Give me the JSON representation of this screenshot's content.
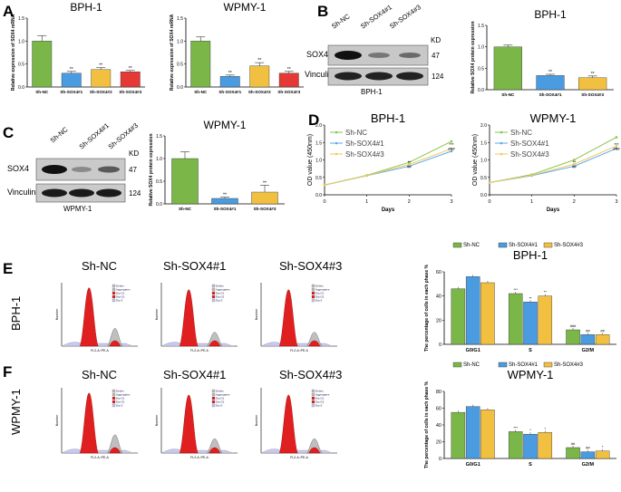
{
  "colors": {
    "green": "#7ab648",
    "blue": "#4a9be0",
    "yellow": "#f2c040",
    "red": "#e53935",
    "flowRed": "#e02020",
    "flowGray": "#bfbfbf",
    "flowLav": "#c8c8f0",
    "lineGreen": "#8bc34a",
    "lineBlue": "#5aa9e6",
    "lineYellow": "#f0c75e"
  },
  "panels": {
    "A": {
      "letter": "A"
    },
    "B": {
      "letter": "B"
    },
    "C": {
      "letter": "C"
    },
    "D": {
      "letter": "D"
    },
    "E": {
      "letter": "E"
    },
    "F": {
      "letter": "F"
    }
  },
  "blot_B": {
    "lanes": [
      "Sh-NC",
      "Sh-SOX4#1",
      "Sh-SOX4#3"
    ],
    "rows": [
      "SOX4",
      "Vinculin"
    ],
    "kd_label": "KD",
    "kd_values": [
      "47",
      "124"
    ],
    "cell_line": "BPH-1"
  },
  "blot_C": {
    "lanes": [
      "Sh-NC",
      "Sh-SOX4#1",
      "Sh-SOX4#3"
    ],
    "rows": [
      "SOX4",
      "Vinculin"
    ],
    "kd_label": "KD",
    "kd_values": [
      "47",
      "124"
    ],
    "cell_line": "WPMY-1"
  },
  "flow_E": {
    "row_label": "BPH-1",
    "titles": [
      "Sh-NC",
      "Sh-SOX4#1",
      "Sh-SOX4#3"
    ],
    "xlabel": "FL2-A::PE-A",
    "ylabel": "Number",
    "legend": [
      "Debris",
      "Aggregates",
      "Dip G1",
      "Dip G2",
      "Dip S"
    ]
  },
  "flow_F": {
    "row_label": "WPMY-1",
    "titles": [
      "Sh-NC",
      "Sh-SOX4#1",
      "Sh-SOX4#3"
    ],
    "xlabel": "FL2-A::PE-A",
    "ylabel": "Number",
    "legend": [
      "Debris",
      "Aggregates",
      "Dip G1",
      "Dip G2",
      "Dip S"
    ]
  },
  "chart_data": [
    {
      "id": "A1",
      "type": "bar",
      "title": "BPH-1",
      "ylabel": "Relative expression of SOX4  mRNA",
      "categories": [
        "Sh-NC",
        "Sh-SOX4#1",
        "Sh-SOX4#2",
        "Sh-SOX4#3"
      ],
      "values": [
        1.0,
        0.3,
        0.38,
        0.33
      ],
      "errors": [
        0.12,
        0.04,
        0.04,
        0.03
      ],
      "sig": [
        "",
        "**",
        "**",
        "**"
      ],
      "ylim": [
        0,
        1.5
      ],
      "yticks": [
        "0.0",
        "0.5",
        "1.0",
        "1.5"
      ],
      "colors": [
        "green",
        "blue",
        "yellow",
        "red"
      ]
    },
    {
      "id": "A2",
      "type": "bar",
      "title": "WPMY-1",
      "ylabel": "Relative expression of SOX4  mRNA",
      "categories": [
        "Sh-NC",
        "Sh-SOX4#1",
        "Sh-SOX4#2",
        "Sh-SOX4#3"
      ],
      "values": [
        1.0,
        0.23,
        0.46,
        0.3
      ],
      "errors": [
        0.09,
        0.03,
        0.07,
        0.04
      ],
      "sig": [
        "",
        "**",
        "**",
        "**"
      ],
      "ylim": [
        0,
        1.5
      ],
      "yticks": [
        "0.0",
        "0.5",
        "1.0",
        "1.5"
      ],
      "colors": [
        "green",
        "blue",
        "yellow",
        "red"
      ]
    },
    {
      "id": "B",
      "type": "bar",
      "title": "BPH-1",
      "ylabel": "Relative SOX4 protein expression",
      "categories": [
        "Sh-NC",
        "Sh-SOX4#1",
        "Sh-SOX4#3"
      ],
      "values": [
        1.0,
        0.33,
        0.28
      ],
      "errors": [
        0.04,
        0.03,
        0.04
      ],
      "sig": [
        "",
        "**",
        "**"
      ],
      "ylim": [
        0,
        1.5
      ],
      "yticks": [
        "0.0",
        "0.5",
        "1.0",
        "1.5"
      ],
      "colors": [
        "green",
        "blue",
        "yellow"
      ]
    },
    {
      "id": "C",
      "type": "bar",
      "title": "WPMY-1",
      "ylabel": "Relative SOX4 protein expression",
      "categories": [
        "Sh-NC",
        "Sh-SOX4#1",
        "Sh-SOX4#3"
      ],
      "values": [
        1.0,
        0.12,
        0.26
      ],
      "errors": [
        0.15,
        0.03,
        0.15
      ],
      "sig": [
        "",
        "**",
        "**"
      ],
      "ylim": [
        0,
        1.5
      ],
      "yticks": [
        "0.0",
        "0.5",
        "1.0",
        "1.5"
      ],
      "colors": [
        "green",
        "blue",
        "yellow"
      ]
    },
    {
      "id": "D1",
      "type": "line",
      "title": "BPH-1",
      "xlabel": "Days",
      "ylabel": "OD value (450nm)",
      "x": [
        0,
        1,
        2,
        3
      ],
      "xticks": [
        "0",
        "1",
        "2",
        "3"
      ],
      "yticks": [
        "0.0",
        "0.5",
        "1.0",
        "1.5",
        "2.0"
      ],
      "ylim": [
        0,
        2.0
      ],
      "series": [
        {
          "name": "Sh-NC",
          "values": [
            0.28,
            0.56,
            0.93,
            1.53
          ],
          "color": "lineGreen"
        },
        {
          "name": "Sh-SOX4#1",
          "values": [
            0.28,
            0.55,
            0.82,
            1.25
          ],
          "color": "lineBlue"
        },
        {
          "name": "Sh-SOX4#3",
          "values": [
            0.28,
            0.55,
            0.87,
            1.32
          ],
          "color": "lineYellow"
        }
      ],
      "annotations": [
        "**",
        "##",
        "***",
        "###"
      ]
    },
    {
      "id": "D2",
      "type": "line",
      "title": "WPMY-1",
      "xlabel": "Days",
      "ylabel": "OD value (450nm)",
      "x": [
        0,
        1,
        2,
        3
      ],
      "xticks": [
        "0",
        "1",
        "2",
        "3"
      ],
      "yticks": [
        "0.0",
        "0.5",
        "1.0",
        "1.5",
        "2.0"
      ],
      "ylim": [
        0,
        2.0
      ],
      "series": [
        {
          "name": "Sh-NC",
          "values": [
            0.35,
            0.58,
            1.0,
            1.65
          ],
          "color": "lineGreen"
        },
        {
          "name": "Sh-SOX4#1",
          "values": [
            0.35,
            0.55,
            0.82,
            1.33
          ],
          "color": "lineBlue"
        },
        {
          "name": "Sh-SOX4#3",
          "values": [
            0.35,
            0.56,
            0.88,
            1.4
          ],
          "color": "lineYellow"
        }
      ],
      "annotations": [
        "**",
        "##",
        "***",
        "###"
      ]
    },
    {
      "id": "E",
      "type": "bar",
      "title": "BPH-1",
      "ylabel": "The percentage of cells in each phase %",
      "categories": [
        "G0/G1",
        "S",
        "G2/M"
      ],
      "series": [
        {
          "name": "Sh-NC",
          "values": [
            46,
            42,
            12
          ],
          "color": "green"
        },
        {
          "name": "Sh-SOX4#1",
          "values": [
            56,
            35,
            8
          ],
          "color": "blue"
        },
        {
          "name": "Sh-SOX4#3",
          "values": [
            51,
            40,
            8
          ],
          "color": "yellow"
        }
      ],
      "sig": [
        [
          "",
          "***",
          "###"
        ],
        [
          "",
          "**",
          "##"
        ],
        [
          "",
          "**",
          "##"
        ]
      ],
      "ylim": [
        0,
        60
      ],
      "yticks": [
        "0",
        "20",
        "40",
        "60"
      ]
    },
    {
      "id": "F",
      "type": "bar",
      "title": "WPMY-1",
      "ylabel": "The percentage of cells in each phase %",
      "categories": [
        "G0/G1",
        "S",
        "G2/M"
      ],
      "series": [
        {
          "name": "Sh-NC",
          "values": [
            55,
            32,
            13
          ],
          "color": "green"
        },
        {
          "name": "Sh-SOX4#1",
          "values": [
            62,
            29,
            8
          ],
          "color": "blue"
        },
        {
          "name": "Sh-SOX4#3",
          "values": [
            58,
            31,
            9
          ],
          "color": "yellow"
        }
      ],
      "sig": [
        [
          "",
          "***",
          "##"
        ],
        [
          "",
          "*",
          "##"
        ],
        [
          "",
          "*",
          "*"
        ]
      ],
      "ylim": [
        0,
        80
      ],
      "yticks": [
        "0",
        "20",
        "40",
        "60",
        "80"
      ]
    }
  ]
}
